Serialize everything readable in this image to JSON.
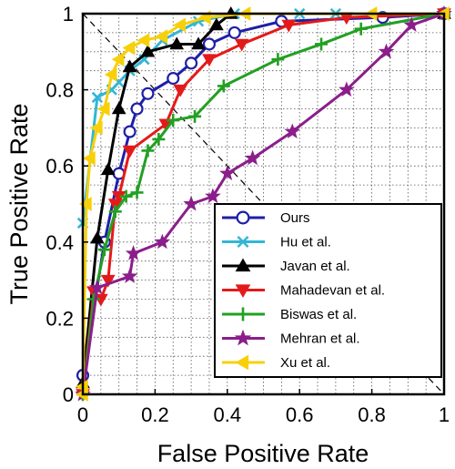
{
  "chart_data": {
    "type": "line",
    "xlabel": "False Positive Rate",
    "ylabel": "True Positive Rate",
    "xlim": [
      0,
      1
    ],
    "ylim": [
      0,
      1
    ],
    "xticks": [
      "0",
      "0.2",
      "0.4",
      "0.6",
      "0.8",
      "1"
    ],
    "yticks": [
      "0",
      "0.2",
      "0.4",
      "0.6",
      "0.8",
      "1"
    ],
    "grid": "on (dotted, minor)",
    "legend_position": "lower-right",
    "diagonal": "dashed line from (0,1) to (1,0)",
    "series": [
      {
        "name": "Ours",
        "color": "#1f1fa8",
        "marker": "circle",
        "points": [
          [
            0,
            0.05
          ],
          [
            0.06,
            0.4
          ],
          [
            0.1,
            0.58
          ],
          [
            0.13,
            0.69
          ],
          [
            0.15,
            0.75
          ],
          [
            0.18,
            0.79
          ],
          [
            0.25,
            0.83
          ],
          [
            0.3,
            0.87
          ],
          [
            0.35,
            0.92
          ],
          [
            0.42,
            0.95
          ],
          [
            0.55,
            0.98
          ],
          [
            0.83,
            0.99
          ],
          [
            1,
            1
          ]
        ]
      },
      {
        "name": "Hu et al.",
        "color": "#33b6d6",
        "marker": "x",
        "points": [
          [
            0,
            0.45
          ],
          [
            0.04,
            0.78
          ],
          [
            0.08,
            0.8
          ],
          [
            0.1,
            0.82
          ],
          [
            0.13,
            0.85
          ],
          [
            0.17,
            0.88
          ],
          [
            0.22,
            0.93
          ],
          [
            0.32,
            0.98
          ],
          [
            0.42,
            1.0
          ],
          [
            0.6,
            1.0
          ],
          [
            0.7,
            1.0
          ],
          [
            1,
            1
          ]
        ]
      },
      {
        "name": "Javan et al.",
        "color": "#000000",
        "marker": "triangle-up",
        "points": [
          [
            0,
            0.03
          ],
          [
            0.04,
            0.41
          ],
          [
            0.07,
            0.59
          ],
          [
            0.1,
            0.75
          ],
          [
            0.13,
            0.86
          ],
          [
            0.18,
            0.9
          ],
          [
            0.26,
            0.92
          ],
          [
            0.32,
            0.92
          ],
          [
            0.37,
            0.97
          ],
          [
            0.41,
            1.0
          ],
          [
            1,
            1
          ]
        ]
      },
      {
        "name": "Mahadevan et al.",
        "color": "#e41a1a",
        "marker": "triangle-down",
        "points": [
          [
            0,
            0
          ],
          [
            0.03,
            0.27
          ],
          [
            0.05,
            0.25
          ],
          [
            0.07,
            0.3
          ],
          [
            0.09,
            0.5
          ],
          [
            0.1,
            0.52
          ],
          [
            0.13,
            0.64
          ],
          [
            0.23,
            0.71
          ],
          [
            0.27,
            0.8
          ],
          [
            0.35,
            0.88
          ],
          [
            0.44,
            0.92
          ],
          [
            0.57,
            0.97
          ],
          [
            0.73,
            0.99
          ],
          [
            1,
            1
          ]
        ]
      },
      {
        "name": "Biswas et al.",
        "color": "#22a022",
        "marker": "plus",
        "points": [
          [
            0,
            0
          ],
          [
            0.03,
            0.25
          ],
          [
            0.06,
            0.38
          ],
          [
            0.09,
            0.48
          ],
          [
            0.12,
            0.52
          ],
          [
            0.15,
            0.53
          ],
          [
            0.18,
            0.64
          ],
          [
            0.21,
            0.67
          ],
          [
            0.25,
            0.72
          ],
          [
            0.31,
            0.73
          ],
          [
            0.39,
            0.81
          ],
          [
            0.54,
            0.88
          ],
          [
            0.66,
            0.92
          ],
          [
            0.77,
            0.96
          ],
          [
            1,
            1
          ]
        ]
      },
      {
        "name": "Mehran et al.",
        "color": "#8b1e8b",
        "marker": "star",
        "points": [
          [
            0,
            0
          ],
          [
            0.04,
            0.28
          ],
          [
            0.13,
            0.31
          ],
          [
            0.14,
            0.37
          ],
          [
            0.22,
            0.4
          ],
          [
            0.3,
            0.5
          ],
          [
            0.36,
            0.52
          ],
          [
            0.4,
            0.58
          ],
          [
            0.47,
            0.62
          ],
          [
            0.58,
            0.69
          ],
          [
            0.73,
            0.8
          ],
          [
            0.84,
            0.9
          ],
          [
            0.91,
            0.97
          ],
          [
            1,
            1
          ]
        ]
      },
      {
        "name": "Xu et al.",
        "color": "#f7d00a",
        "marker": "triangle-left",
        "points": [
          [
            0,
            0
          ],
          [
            0,
            0.02
          ],
          [
            0.01,
            0.5
          ],
          [
            0.02,
            0.62
          ],
          [
            0.04,
            0.7
          ],
          [
            0.06,
            0.75
          ],
          [
            0.08,
            0.84
          ],
          [
            0.1,
            0.88
          ],
          [
            0.13,
            0.91
          ],
          [
            0.17,
            0.93
          ],
          [
            0.22,
            0.94
          ],
          [
            0.27,
            0.97
          ],
          [
            0.34,
            0.99
          ],
          [
            0.45,
            1.0
          ],
          [
            0.8,
            1.0
          ],
          [
            1,
            1
          ]
        ]
      }
    ]
  }
}
